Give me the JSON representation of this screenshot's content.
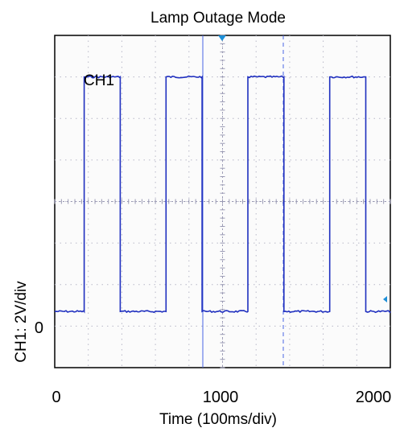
{
  "chart_data": {
    "type": "line",
    "title": "Lamp Outage Mode",
    "xlabel": "Time (100ms/div)",
    "ylabel": "CH1: 2V/div",
    "x_ticks": [
      "0",
      "1000",
      "2000"
    ],
    "y_tick_zero": "0",
    "xlim": [
      0,
      2050
    ],
    "ylim": [
      -2.3,
      11.3
    ],
    "grid": true,
    "annotations": [
      {
        "text": "CH1"
      }
    ],
    "series": [
      {
        "name": "CH1",
        "color": "#1f2fbf",
        "x": [
          0,
          180,
          180,
          400,
          400,
          680,
          680,
          900,
          900,
          1180,
          1180,
          1400,
          1400,
          1680,
          1680,
          1900,
          1900,
          2050
        ],
        "y": [
          0,
          0,
          9.6,
          9.6,
          0,
          0,
          9.6,
          9.6,
          0,
          0,
          9.6,
          9.6,
          0,
          0,
          9.6,
          9.6,
          0,
          0
        ]
      }
    ],
    "markers": {
      "trigger_color": "#1e90d8",
      "cursor_color": "#4a64e6"
    }
  }
}
